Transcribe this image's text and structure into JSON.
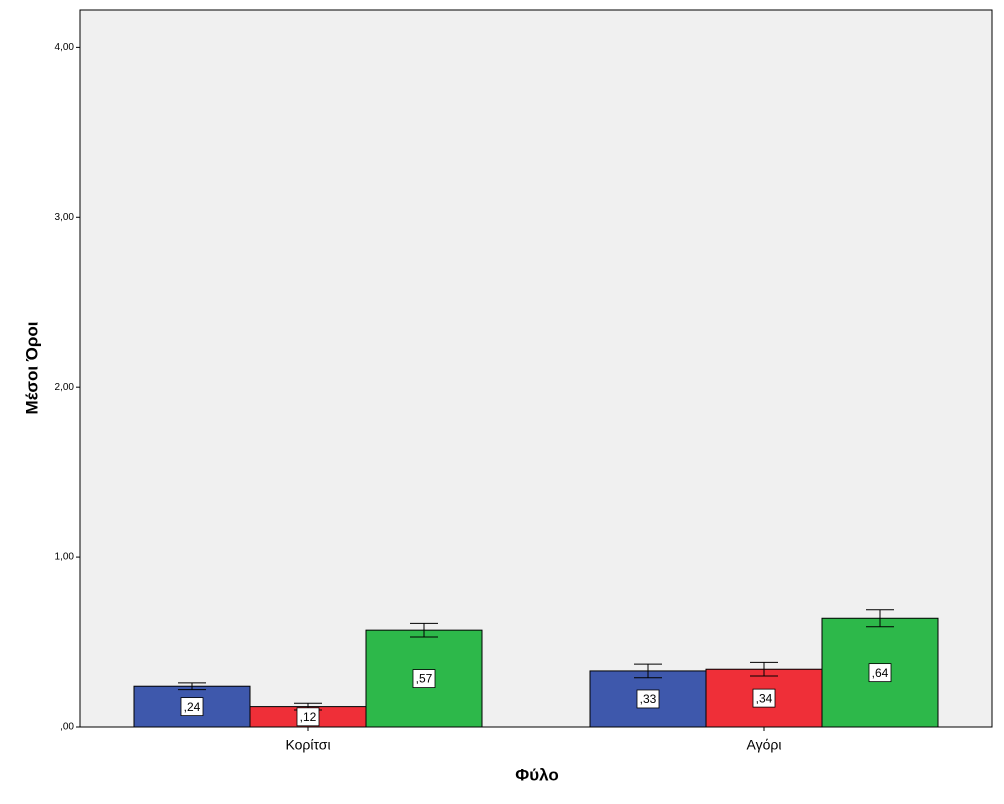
{
  "chart_data": {
    "type": "bar",
    "x_label": "Φύλο",
    "y_label": "Μέσοι Όροι",
    "categories": [
      "Κορίτσι",
      "Αγόρι"
    ],
    "series": [
      {
        "color": "#3e58ac",
        "values": [
          0.24,
          0.33
        ],
        "value_labels": [
          ",24",
          ",33"
        ],
        "errors": [
          0.02,
          0.04
        ]
      },
      {
        "color": "#ef2f38",
        "values": [
          0.12,
          0.34
        ],
        "value_labels": [
          ",12",
          ",34"
        ],
        "errors": [
          0.02,
          0.04
        ]
      },
      {
        "color": "#2db84a",
        "values": [
          0.57,
          0.64
        ],
        "value_labels": [
          ",57",
          ",64"
        ],
        "errors": [
          0.04,
          0.05
        ]
      }
    ],
    "ylim": [
      0,
      4.22
    ],
    "yticks": [
      {
        "value": 0,
        "label": ",00"
      },
      {
        "value": 1,
        "label": "1,00"
      },
      {
        "value": 2,
        "label": "2,00"
      },
      {
        "value": 3,
        "label": "3,00"
      },
      {
        "value": 4,
        "label": "4,00"
      }
    ],
    "background": "#f0f0f0"
  }
}
